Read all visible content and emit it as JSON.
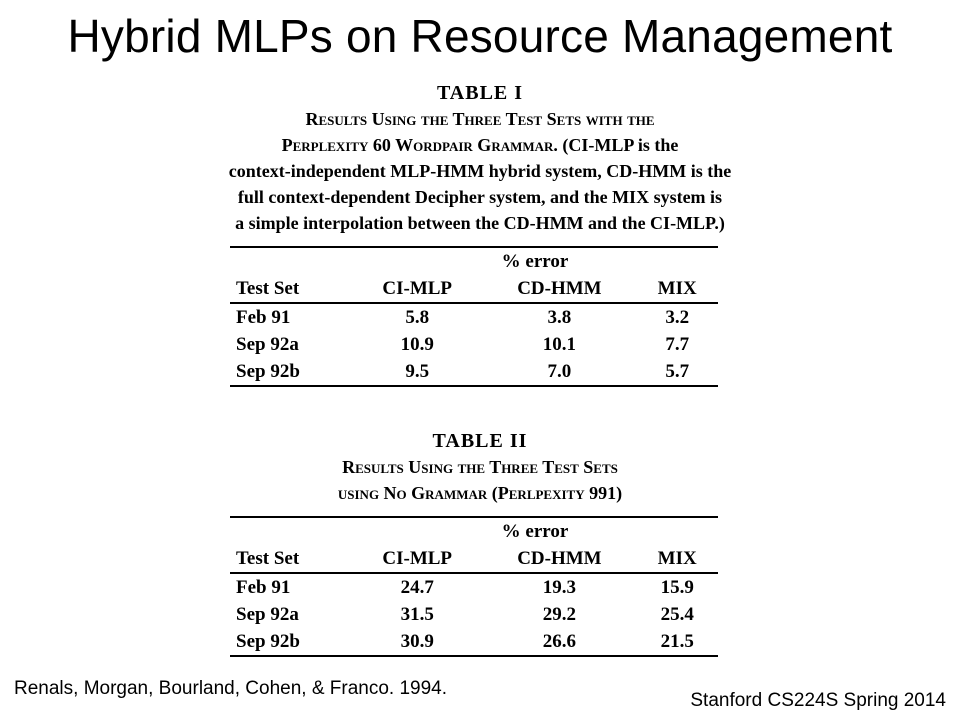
{
  "slide": {
    "title": "Hybrid MLPs on Resource Management",
    "citation": "Renals, Morgan, Bourland, Cohen, & Franco. 1994.",
    "footer": "Stanford CS224S Spring 2014"
  },
  "table1": {
    "label": "TABLE I",
    "caption_line1": "Results Using the Three Test Sets with the",
    "caption_line2_sc": "Perplexity 60 Wordpair Grammar.",
    "caption_line2_rest": " (CI-MLP is the",
    "caption_line3": "context-independent MLP-HMM hybrid system, CD-HMM is the",
    "caption_line4": "full context-dependent Decipher system, and the MIX system is",
    "caption_line5": "a simple interpolation between the CD-HMM and the CI-MLP.)",
    "subheader": "% error",
    "columns": [
      "Test Set",
      "CI-MLP",
      "CD-HMM",
      "MIX"
    ],
    "rows": [
      [
        "Feb 91",
        "5.8",
        "3.8",
        "3.2"
      ],
      [
        "Sep 92a",
        "10.9",
        "10.1",
        "7.7"
      ],
      [
        "Sep 92b",
        "9.5",
        "7.0",
        "5.7"
      ]
    ]
  },
  "table2": {
    "label": "TABLE II",
    "caption_line1": "Results Using the Three Test Sets",
    "caption_line2_sc": "using No Grammar",
    "caption_line2_rest": " (Perlpexity 991)",
    "subheader": "% error",
    "columns": [
      "Test Set",
      "CI-MLP",
      "CD-HMM",
      "MIX"
    ],
    "rows": [
      [
        "Feb 91",
        "24.7",
        "19.3",
        "15.9"
      ],
      [
        "Sep 92a",
        "31.5",
        "29.2",
        "25.4"
      ],
      [
        "Sep 92b",
        "30.9",
        "26.6",
        "21.5"
      ]
    ]
  }
}
